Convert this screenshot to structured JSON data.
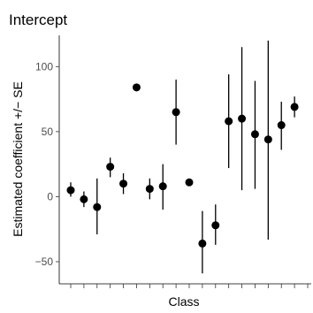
{
  "chart_data": {
    "type": "scatter",
    "title": "Intercept",
    "xlabel": "Class",
    "ylabel": "Estimated coefficient +/− SE",
    "ylim": [
      -67,
      124
    ],
    "yticks": [
      -50,
      0,
      50,
      100
    ],
    "ytick_labels": [
      "−50",
      "0",
      "50",
      "100"
    ],
    "grid": false,
    "x_tick_count": 19,
    "point_color": "#000000",
    "points": [
      {
        "x": 1,
        "y": 5,
        "lo": 0,
        "hi": 11
      },
      {
        "x": 2,
        "y": -2,
        "lo": -8,
        "hi": 4
      },
      {
        "x": 3,
        "y": -8,
        "lo": -29,
        "hi": 14
      },
      {
        "x": 4,
        "y": 23,
        "lo": 15,
        "hi": 30
      },
      {
        "x": 5,
        "y": 10,
        "lo": 2,
        "hi": 18
      },
      {
        "x": 6,
        "y": 84,
        "lo": null,
        "hi": null
      },
      {
        "x": 7,
        "y": 6,
        "lo": -2,
        "hi": 14
      },
      {
        "x": 8,
        "y": 8,
        "lo": -10,
        "hi": 25
      },
      {
        "x": 9,
        "y": 65,
        "lo": 40,
        "hi": 90
      },
      {
        "x": 10,
        "y": 11,
        "lo": null,
        "hi": null
      },
      {
        "x": 11,
        "y": -36,
        "lo": -59,
        "hi": -11
      },
      {
        "x": 12,
        "y": -22,
        "lo": -37,
        "hi": -6
      },
      {
        "x": 13,
        "y": 58,
        "lo": 22,
        "hi": 94
      },
      {
        "x": 14,
        "y": 60,
        "lo": 5,
        "hi": 115
      },
      {
        "x": 15,
        "y": 48,
        "lo": 6,
        "hi": 89
      },
      {
        "x": 16,
        "y": 44,
        "lo": -33,
        "hi": 120
      },
      {
        "x": 17,
        "y": 55,
        "lo": 36,
        "hi": 73
      },
      {
        "x": 18,
        "y": 69,
        "lo": 61,
        "hi": 77
      }
    ]
  }
}
